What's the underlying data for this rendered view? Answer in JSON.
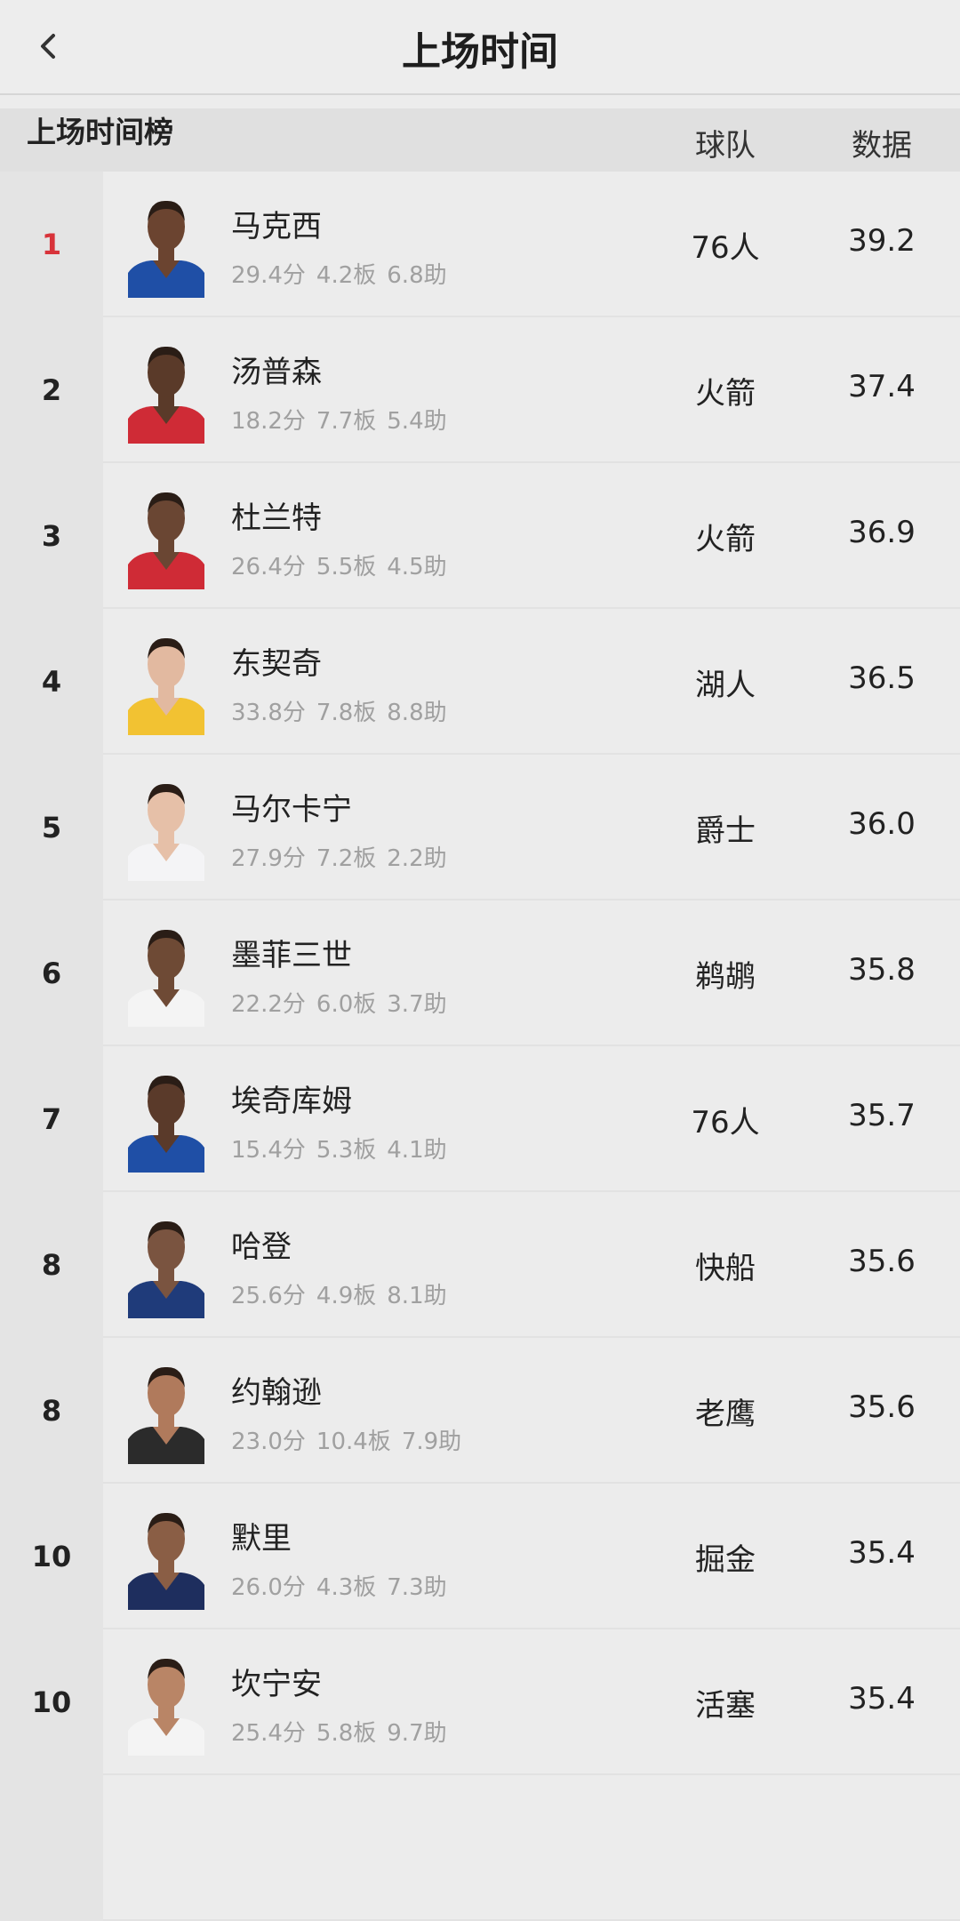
{
  "header": {
    "title": "上场时间",
    "back_icon": "chevron-left-icon"
  },
  "table": {
    "title": "上场时间榜",
    "columns": [
      "球队",
      "数据"
    ],
    "accent_color": "#d8333a",
    "rows": [
      {
        "rank": "1",
        "name": "马克西",
        "pts": "29.4分",
        "reb": "4.2板",
        "ast": "6.8助",
        "team": "76人",
        "value": "39.2",
        "jersey": "#1f4fa6",
        "skin": "#6b4430"
      },
      {
        "rank": "2",
        "name": "汤普森",
        "pts": "18.2分",
        "reb": "7.7板",
        "ast": "5.4助",
        "team": "火箭",
        "value": "37.4",
        "jersey": "#cf2b36",
        "skin": "#5a3a29"
      },
      {
        "rank": "3",
        "name": "杜兰特",
        "pts": "26.4分",
        "reb": "5.5板",
        "ast": "4.5助",
        "team": "火箭",
        "value": "36.9",
        "jersey": "#cf2b36",
        "skin": "#6a4633"
      },
      {
        "rank": "4",
        "name": "东契奇",
        "pts": "33.8分",
        "reb": "7.8板",
        "ast": "8.8助",
        "team": "湖人",
        "value": "36.5",
        "jersey": "#f2c232",
        "skin": "#e2b9a0"
      },
      {
        "rank": "5",
        "name": "马尔卡宁",
        "pts": "27.9分",
        "reb": "7.2板",
        "ast": "2.2助",
        "team": "爵士",
        "value": "36.0",
        "jersey": "#f4f4f6",
        "skin": "#e6c0a8"
      },
      {
        "rank": "6",
        "name": "墨菲三世",
        "pts": "22.2分",
        "reb": "6.0板",
        "ast": "3.7助",
        "team": "鹈鹕",
        "value": "35.8",
        "jersey": "#f4f4f4",
        "skin": "#6e4a35"
      },
      {
        "rank": "7",
        "name": "埃奇库姆",
        "pts": "15.4分",
        "reb": "5.3板",
        "ast": "4.1助",
        "team": "76人",
        "value": "35.7",
        "jersey": "#1f4fa6",
        "skin": "#5a3a2a"
      },
      {
        "rank": "8",
        "name": "哈登",
        "pts": "25.6分",
        "reb": "4.9板",
        "ast": "8.1助",
        "team": "快船",
        "value": "35.6",
        "jersey": "#1f3b7a",
        "skin": "#7a5440"
      },
      {
        "rank": "8",
        "name": "约翰逊",
        "pts": "23.0分",
        "reb": "10.4板",
        "ast": "7.9助",
        "team": "老鹰",
        "value": "35.6",
        "jersey": "#2b2b2b",
        "skin": "#b07a5c"
      },
      {
        "rank": "10",
        "name": "默里",
        "pts": "26.0分",
        "reb": "4.3板",
        "ast": "7.3助",
        "team": "掘金",
        "value": "35.4",
        "jersey": "#1e2e5e",
        "skin": "#8a5e45"
      },
      {
        "rank": "10",
        "name": "坎宁安",
        "pts": "25.4分",
        "reb": "5.8板",
        "ast": "9.7助",
        "team": "活塞",
        "value": "35.4",
        "jersey": "#f4f4f4",
        "skin": "#b98566"
      }
    ]
  }
}
